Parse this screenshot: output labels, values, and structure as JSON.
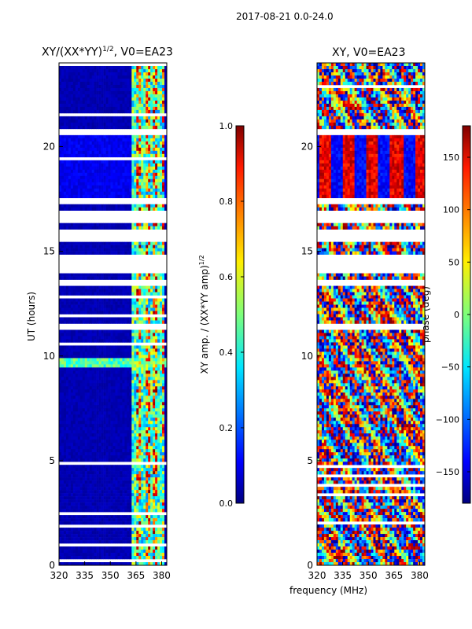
{
  "figure_title": "2017-08-21 0.0-24.0",
  "chart_data": [
    {
      "type": "heatmap",
      "title": "XY/(XX*YY)^1/2, V0=EA23",
      "title_main": "XY/(XX*YY)",
      "title_exp": "1/2",
      "title_tail": ", V0=EA23",
      "xlabel": "frequency (MHz)",
      "ylabel": "UT (hours)",
      "xlim": [
        320,
        383
      ],
      "ylim": [
        0,
        24
      ],
      "xticks": [
        320,
        335,
        350,
        365,
        380
      ],
      "yticks": [
        0,
        5,
        10,
        15,
        20
      ],
      "colorbar": {
        "label": "XY amp. / (XX*YY amp)^1/2",
        "label_main": "XY amp. / (XX*YY amp)",
        "label_exp": "1/2",
        "range": [
          0.0,
          1.0
        ],
        "ticks": [
          "0.0",
          "0.2",
          "0.4",
          "0.6",
          "0.8",
          "1.0"
        ],
        "tick_values": [
          0.0,
          0.2,
          0.4,
          0.6,
          0.8,
          1.0
        ]
      },
      "gaps_hours": [
        [
          14.0,
          14.8
        ],
        [
          15.4,
          16.1
        ],
        [
          16.4,
          16.9
        ],
        [
          17.3,
          17.6
        ],
        [
          20.5,
          20.9
        ],
        [
          11.3,
          11.6
        ],
        [
          13.4,
          13.6
        ]
      ]
    },
    {
      "type": "heatmap",
      "title": "XY, V0=EA23",
      "xlabel": "frequency (MHz)",
      "ylabel": "",
      "xlim": [
        320,
        383
      ],
      "ylim": [
        0,
        24
      ],
      "xticks": [
        320,
        335,
        350,
        365,
        380
      ],
      "yticks": [
        0,
        5,
        10,
        15,
        20
      ],
      "colorbar": {
        "label": "phase (deg)",
        "range": [
          -180,
          180
        ],
        "ticks": [
          "150",
          "100",
          "50",
          "0",
          "−50",
          "−100",
          "−150"
        ],
        "tick_values": [
          150,
          100,
          50,
          0,
          -50,
          -100,
          -150
        ]
      },
      "gaps_hours": [
        [
          14.0,
          14.8
        ],
        [
          15.4,
          16.1
        ],
        [
          16.4,
          16.9
        ],
        [
          17.3,
          17.6
        ],
        [
          20.5,
          20.9
        ],
        [
          11.3,
          11.6
        ],
        [
          13.4,
          13.6
        ]
      ]
    }
  ],
  "colors": {
    "jet_low": "#00007f",
    "jet_high": "#7f0000",
    "gap": "#ffffff"
  }
}
